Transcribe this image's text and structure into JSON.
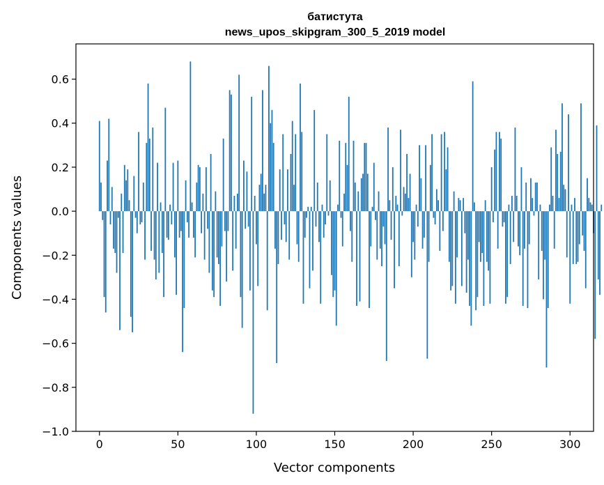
{
  "chart_data": {
    "type": "bar",
    "title_line1": "батистута",
    "title_line2": "news_upos_skipgram_300_5_2019 model",
    "xlabel": "Vector components",
    "ylabel": "Components values",
    "xlim": [
      -15,
      315
    ],
    "ylim": [
      -1.0,
      0.76
    ],
    "xticks": [
      0,
      50,
      100,
      150,
      200,
      250,
      300
    ],
    "xtick_labels": [
      "0",
      "50",
      "100",
      "150",
      "200",
      "250",
      "300"
    ],
    "yticks": [
      -1.0,
      -0.8,
      -0.6,
      -0.4,
      -0.2,
      0.0,
      0.2,
      0.4,
      0.6
    ],
    "ytick_labels": [
      "−1.0",
      "−0.8",
      "−0.6",
      "−0.4",
      "−0.2",
      "0.0",
      "0.2",
      "0.4",
      "0.6"
    ],
    "bar_color": "#1f77b4",
    "grid": false,
    "values": [
      0.41,
      0.13,
      -0.04,
      -0.39,
      -0.46,
      0.23,
      0.42,
      -0.06,
      0.11,
      -0.17,
      -0.19,
      -0.28,
      -0.03,
      -0.54,
      0.08,
      -0.19,
      0.21,
      0.14,
      0.19,
      0.05,
      -0.48,
      -0.55,
      0.16,
      -0.03,
      -0.1,
      0.36,
      -0.06,
      -0.05,
      0.13,
      -0.22,
      0.31,
      0.58,
      0.33,
      -0.18,
      0.38,
      -0.22,
      -0.31,
      0.22,
      -0.28,
      0.04,
      -0.19,
      -0.39,
      0.47,
      -0.12,
      -0.13,
      0.03,
      -0.06,
      0.22,
      -0.21,
      -0.38,
      0.23,
      -0.12,
      -0.09,
      -0.64,
      -0.44,
      0.14,
      -0.05,
      -0.12,
      0.68,
      0.04,
      -0.12,
      -0.21,
      0.13,
      0.21,
      0.2,
      -0.1,
      0.08,
      -0.22,
      0.2,
      -0.08,
      -0.28,
      0.26,
      -0.36,
      -0.39,
      0.09,
      -0.21,
      -0.24,
      -0.43,
      -0.16,
      0.33,
      -0.09,
      -0.32,
      -0.09,
      0.55,
      0.53,
      -0.27,
      0.07,
      -0.17,
      0.08,
      0.62,
      -0.39,
      -0.53,
      0.23,
      -0.08,
      0.18,
      -0.07,
      -0.36,
      0.52,
      -0.92,
      0.07,
      -0.15,
      -0.34,
      0.12,
      0.17,
      0.55,
      0.08,
      0.12,
      -0.45,
      0.66,
      0.4,
      0.46,
      0.31,
      -0.17,
      -0.69,
      -0.24,
      0.19,
      -0.13,
      0.35,
      -0.06,
      -0.14,
      0.19,
      -0.22,
      0.26,
      0.41,
      0.12,
      0.35,
      -0.15,
      -0.23,
      0.58,
      0.36,
      -0.42,
      -0.12,
      -0.03,
      0.02,
      -0.35,
      0.02,
      -0.27,
      0.46,
      -0.07,
      0.13,
      -0.14,
      -0.42,
      0.03,
      -0.12,
      -0.06,
      0.35,
      -0.02,
      0.14,
      -0.29,
      -0.39,
      -0.36,
      -0.52,
      0.03,
      0.32,
      -0.03,
      -0.16,
      0.08,
      0.31,
      0.21,
      0.52,
      -0.09,
      -0.23,
      0.32,
      0.13,
      -0.43,
      0.09,
      -0.41,
      0.15,
      0.17,
      0.31,
      0.31,
      0.17,
      -0.44,
      -0.16,
      0.02,
      0.22,
      -0.04,
      -0.22,
      0.09,
      -0.17,
      -0.25,
      -0.07,
      -0.15,
      -0.68,
      0.38,
      0.05,
      -0.13,
      0.2,
      -0.35,
      0.07,
      0.03,
      -0.25,
      0.37,
      -0.02,
      0.11,
      0.08,
      0.26,
      0.06,
      0.17,
      -0.3,
      -0.14,
      -0.22,
      0.03,
      -0.07,
      0.3,
      0.15,
      -0.17,
      -0.12,
      0.3,
      -0.67,
      -0.23,
      0.21,
      0.35,
      -0.03,
      -0.06,
      0.1,
      0.05,
      -0.18,
      0.35,
      -0.09,
      0.36,
      0.19,
      0.29,
      -0.23,
      -0.36,
      -0.34,
      0.09,
      -0.42,
      -0.21,
      0.06,
      0.05,
      -0.34,
      0.06,
      -0.1,
      -0.37,
      -0.22,
      -0.43,
      -0.52,
      0.59,
      0.04,
      -0.45,
      -0.39,
      -0.14,
      -0.23,
      -0.19,
      -0.43,
      0.05,
      -0.23,
      -0.27,
      -0.42,
      0.2,
      -0.05,
      0.28,
      0.36,
      -0.17,
      0.36,
      0.33,
      -0.07,
      -0.05,
      -0.42,
      -0.39,
      0.03,
      -0.24,
      0.07,
      -0.14,
      0.38,
      0.07,
      -0.16,
      -0.2,
      0.2,
      -0.43,
      -0.17,
      0.13,
      -0.44,
      -0.15,
      0.15,
      0.06,
      -0.02,
      0.13,
      0.13,
      -0.31,
      0.03,
      -0.18,
      -0.4,
      -0.22,
      -0.71,
      -0.44,
      0.03,
      0.29,
      0.07,
      -0.17,
      0.37,
      0.26,
      0.06,
      0.27,
      0.49,
      0.12,
      0.1,
      -0.21,
      0.44,
      -0.42,
      0.03,
      -0.24,
      0.06,
      -0.24,
      -0.23,
      -0.15,
      0.49,
      -0.11,
      -0.18,
      -0.35,
      0.15,
      0.06,
      0.04,
      0.03,
      -0.1,
      -0.58,
      0.39,
      -0.31,
      -0.38,
      0.03
    ]
  }
}
